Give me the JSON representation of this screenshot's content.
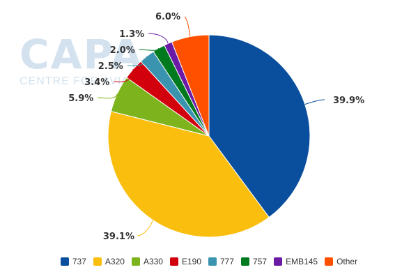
{
  "watermark": {
    "logo_text": "CAPA",
    "subtitle": "CENTRE FOR AVIATION"
  },
  "chart_data": {
    "type": "pie",
    "title": "",
    "series": [
      {
        "name": "737",
        "value": 39.9,
        "label": "39.9%",
        "color": "#0a4f9e"
      },
      {
        "name": "A320",
        "value": 39.1,
        "label": "39.1%",
        "color": "#f9be0e"
      },
      {
        "name": "A330",
        "value": 5.9,
        "label": "5.9%",
        "color": "#7db41e"
      },
      {
        "name": "E190",
        "value": 3.4,
        "label": "3.4%",
        "color": "#d2000d"
      },
      {
        "name": "777",
        "value": 2.5,
        "label": "2.5%",
        "color": "#3a94b0"
      },
      {
        "name": "757",
        "value": 2.0,
        "label": "2.0%",
        "color": "#007a1f"
      },
      {
        "name": "EMB145",
        "value": 1.3,
        "label": "1.3%",
        "color": "#6b1aa6"
      },
      {
        "name": "Other",
        "value": 6.0,
        "label": "6.0%",
        "color": "#ff5000"
      }
    ],
    "legend_position": "bottom"
  }
}
